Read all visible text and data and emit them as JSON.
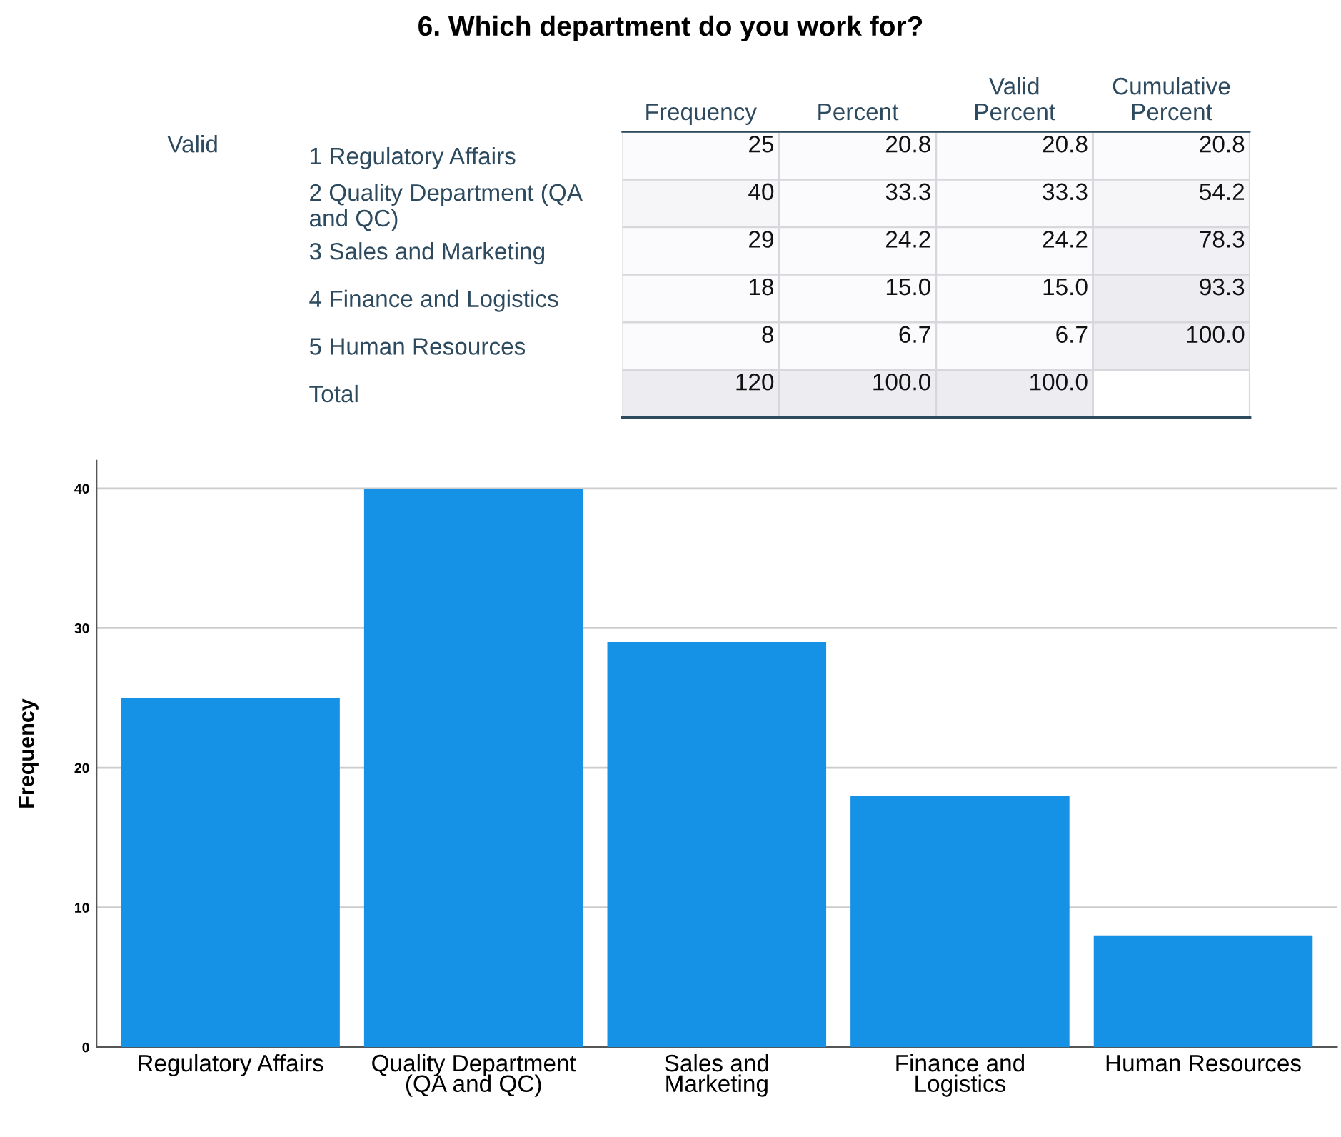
{
  "chart_data": [
    {
      "type": "heatmap",
      "title": "6. Which department do you work for?",
      "categories": [
        "Frequency",
        "Percent",
        "Valid Percent",
        "Cumulative Percent"
      ],
      "y_categories": [
        "1 Regulatory Affairs",
        "2 Quality Department (QA and QC)",
        "3 Sales and Marketing",
        "4 Finance and Logistics",
        "5 Human Resources",
        "Total"
      ],
      "cells": [
        [
          25,
          20.8,
          20.8,
          20.8
        ],
        [
          40,
          33.3,
          33.3,
          54.2
        ],
        [
          29,
          24.2,
          24.2,
          78.3
        ],
        [
          18,
          15.0,
          15.0,
          93.3
        ],
        [
          8,
          6.7,
          6.7,
          100.0
        ],
        [
          120,
          100.0,
          100.0,
          null
        ]
      ],
      "cell_labels": [
        [
          "25",
          "20.8",
          "20.8",
          "20.8"
        ],
        [
          "40",
          "33.3",
          "33.3",
          "54.2"
        ],
        [
          "29",
          "24.2",
          "24.2",
          "78.3"
        ],
        [
          "18",
          "15.0",
          "15.0",
          "93.3"
        ],
        [
          "8",
          "6.7",
          "6.7",
          "100.0"
        ],
        [
          "120",
          "100.0",
          "100.0",
          null
        ]
      ],
      "annotations": [
        "Valid"
      ]
    },
    {
      "type": "bar",
      "ylabel": "Frequency",
      "categories": [
        "Regulatory Affairs",
        "Quality Department (QA and QC)",
        "Sales and Marketing",
        "Finance and Logistics",
        "Human Resources"
      ],
      "values": [
        25,
        40,
        29,
        18,
        8
      ],
      "color": "#1591e6",
      "ylim": [
        0,
        42
      ],
      "yticks": [
        0,
        10,
        20,
        30,
        40
      ],
      "grid": "y",
      "legend": false
    }
  ]
}
